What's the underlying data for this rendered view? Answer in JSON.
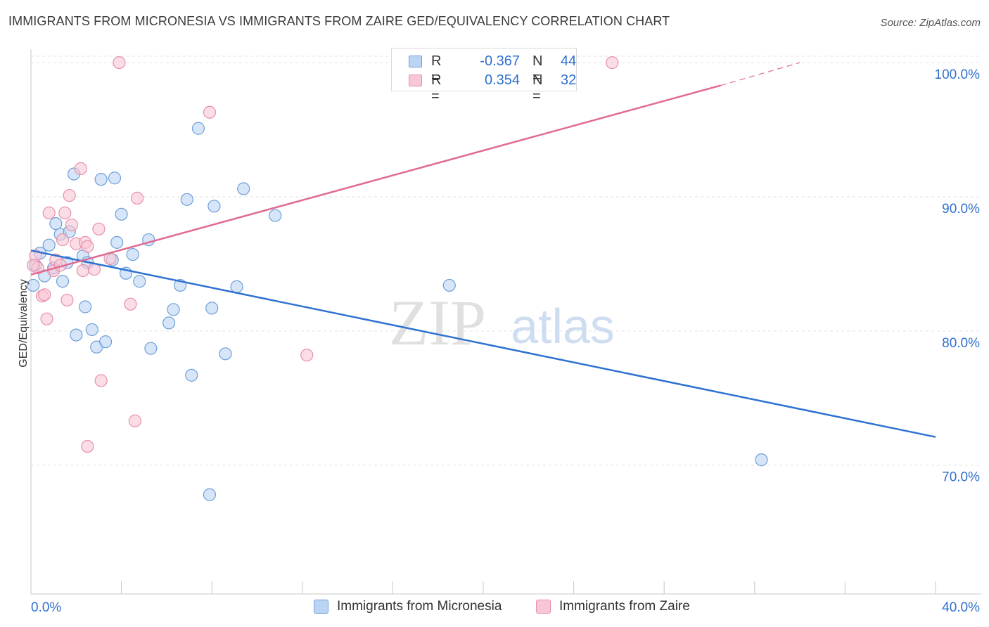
{
  "header": {
    "title": "IMMIGRANTS FROM MICRONESIA VS IMMIGRANTS FROM ZAIRE GED/EQUIVALENCY CORRELATION CHART",
    "source": "Source: ZipAtlas.com"
  },
  "legend": {
    "rows": [
      {
        "r_label": "R =",
        "r_value": "-0.367",
        "n_label": "N =",
        "n_value": "44"
      },
      {
        "r_label": "R =",
        "r_value": "0.354",
        "n_label": "N =",
        "n_value": "32"
      }
    ]
  },
  "watermark": {
    "zip": "ZIP",
    "atlas": "atlas"
  },
  "colors": {
    "blue_fill": "#bcd4f4",
    "blue_stroke": "#6f9fd8",
    "blue_line": "#2f72d0",
    "pink_fill": "#f8c6d6",
    "pink_stroke": "#e890ab",
    "pink_line": "#e06a93",
    "tick_text": "#2e6fd0",
    "grid": "#e2e2e2"
  },
  "chart_data": {
    "type": "scatter",
    "title": "IMMIGRANTS FROM MICRONESIA VS IMMIGRANTS FROM ZAIRE GED/EQUIVALENCY CORRELATION CHART",
    "xlabel": "",
    "ylabel": "GED/Equivalency",
    "xlim": [
      0,
      40
    ],
    "ylim": [
      60.4,
      101.0
    ],
    "x_tick_labels": [
      "0.0%",
      "40.0%"
    ],
    "y_ticks": [
      70,
      80,
      90,
      100
    ],
    "y_tick_labels": [
      "70.0%",
      "80.0%",
      "90.0%",
      "100.0%"
    ],
    "grid": true,
    "legend_position": "bottom",
    "series": [
      {
        "name": "Immigrants from Micronesia",
        "color": "#6f9fd8",
        "points": [
          [
            0.1,
            83.4
          ],
          [
            0.2,
            84.9
          ],
          [
            0.4,
            85.8
          ],
          [
            0.6,
            84.1
          ],
          [
            0.8,
            86.4
          ],
          [
            1.0,
            84.7
          ],
          [
            1.1,
            88.0
          ],
          [
            1.3,
            87.2
          ],
          [
            1.4,
            83.7
          ],
          [
            1.6,
            85.1
          ],
          [
            1.7,
            87.4
          ],
          [
            1.9,
            91.7
          ],
          [
            2.0,
            79.7
          ],
          [
            2.3,
            85.6
          ],
          [
            2.4,
            81.8
          ],
          [
            2.5,
            85.1
          ],
          [
            2.7,
            80.1
          ],
          [
            2.9,
            78.8
          ],
          [
            3.1,
            91.3
          ],
          [
            3.3,
            79.2
          ],
          [
            3.6,
            85.3
          ],
          [
            3.7,
            91.4
          ],
          [
            3.8,
            86.6
          ],
          [
            4.0,
            88.7
          ],
          [
            4.2,
            84.3
          ],
          [
            4.5,
            85.7
          ],
          [
            4.8,
            83.7
          ],
          [
            5.2,
            86.8
          ],
          [
            5.3,
            78.7
          ],
          [
            6.1,
            80.6
          ],
          [
            6.3,
            81.6
          ],
          [
            6.6,
            83.4
          ],
          [
            6.9,
            89.8
          ],
          [
            7.1,
            76.7
          ],
          [
            7.4,
            95.1
          ],
          [
            7.9,
            67.8
          ],
          [
            8.0,
            81.7
          ],
          [
            8.1,
            89.3
          ],
          [
            8.6,
            78.3
          ],
          [
            9.1,
            83.3
          ],
          [
            9.4,
            90.6
          ],
          [
            10.8,
            88.6
          ],
          [
            18.5,
            83.4
          ],
          [
            32.3,
            70.4
          ]
        ]
      },
      {
        "name": "Immigrants from Zaire",
        "color": "#e890ab",
        "points": [
          [
            0.2,
            85.6
          ],
          [
            0.3,
            84.7
          ],
          [
            0.5,
            82.6
          ],
          [
            0.6,
            82.7
          ],
          [
            0.7,
            80.9
          ],
          [
            0.8,
            88.8
          ],
          [
            1.0,
            84.5
          ],
          [
            1.1,
            85.3
          ],
          [
            1.3,
            84.9
          ],
          [
            1.4,
            86.8
          ],
          [
            1.5,
            88.8
          ],
          [
            1.6,
            82.3
          ],
          [
            1.7,
            90.1
          ],
          [
            1.8,
            87.9
          ],
          [
            2.0,
            86.5
          ],
          [
            2.2,
            92.1
          ],
          [
            2.3,
            84.5
          ],
          [
            2.4,
            86.6
          ],
          [
            2.5,
            71.4
          ],
          [
            2.5,
            86.3
          ],
          [
            2.8,
            84.6
          ],
          [
            3.0,
            87.6
          ],
          [
            3.1,
            76.3
          ],
          [
            3.5,
            85.4
          ],
          [
            3.9,
            100.0
          ],
          [
            4.4,
            82.0
          ],
          [
            4.6,
            73.3
          ],
          [
            4.7,
            89.9
          ],
          [
            7.9,
            96.3
          ],
          [
            12.2,
            78.2
          ],
          [
            25.7,
            100.0
          ],
          [
            0.1,
            84.9
          ]
        ]
      }
    ],
    "trend_lines": [
      {
        "series": "Immigrants from Micronesia",
        "x": [
          0,
          40
        ],
        "y": [
          86.0,
          72.1
        ],
        "style": "solid"
      },
      {
        "series": "Immigrants from Zaire",
        "x": [
          0,
          30.5
        ],
        "y": [
          84.2,
          98.3
        ],
        "style": "solid"
      },
      {
        "series": "Immigrants from Zaire",
        "x": [
          30.5,
          34.0
        ],
        "y": [
          98.3,
          100.0
        ],
        "style": "dashed"
      }
    ]
  },
  "bottom_legend": {
    "items": [
      {
        "label": "Immigrants from Micronesia"
      },
      {
        "label": "Immigrants from Zaire"
      }
    ]
  }
}
